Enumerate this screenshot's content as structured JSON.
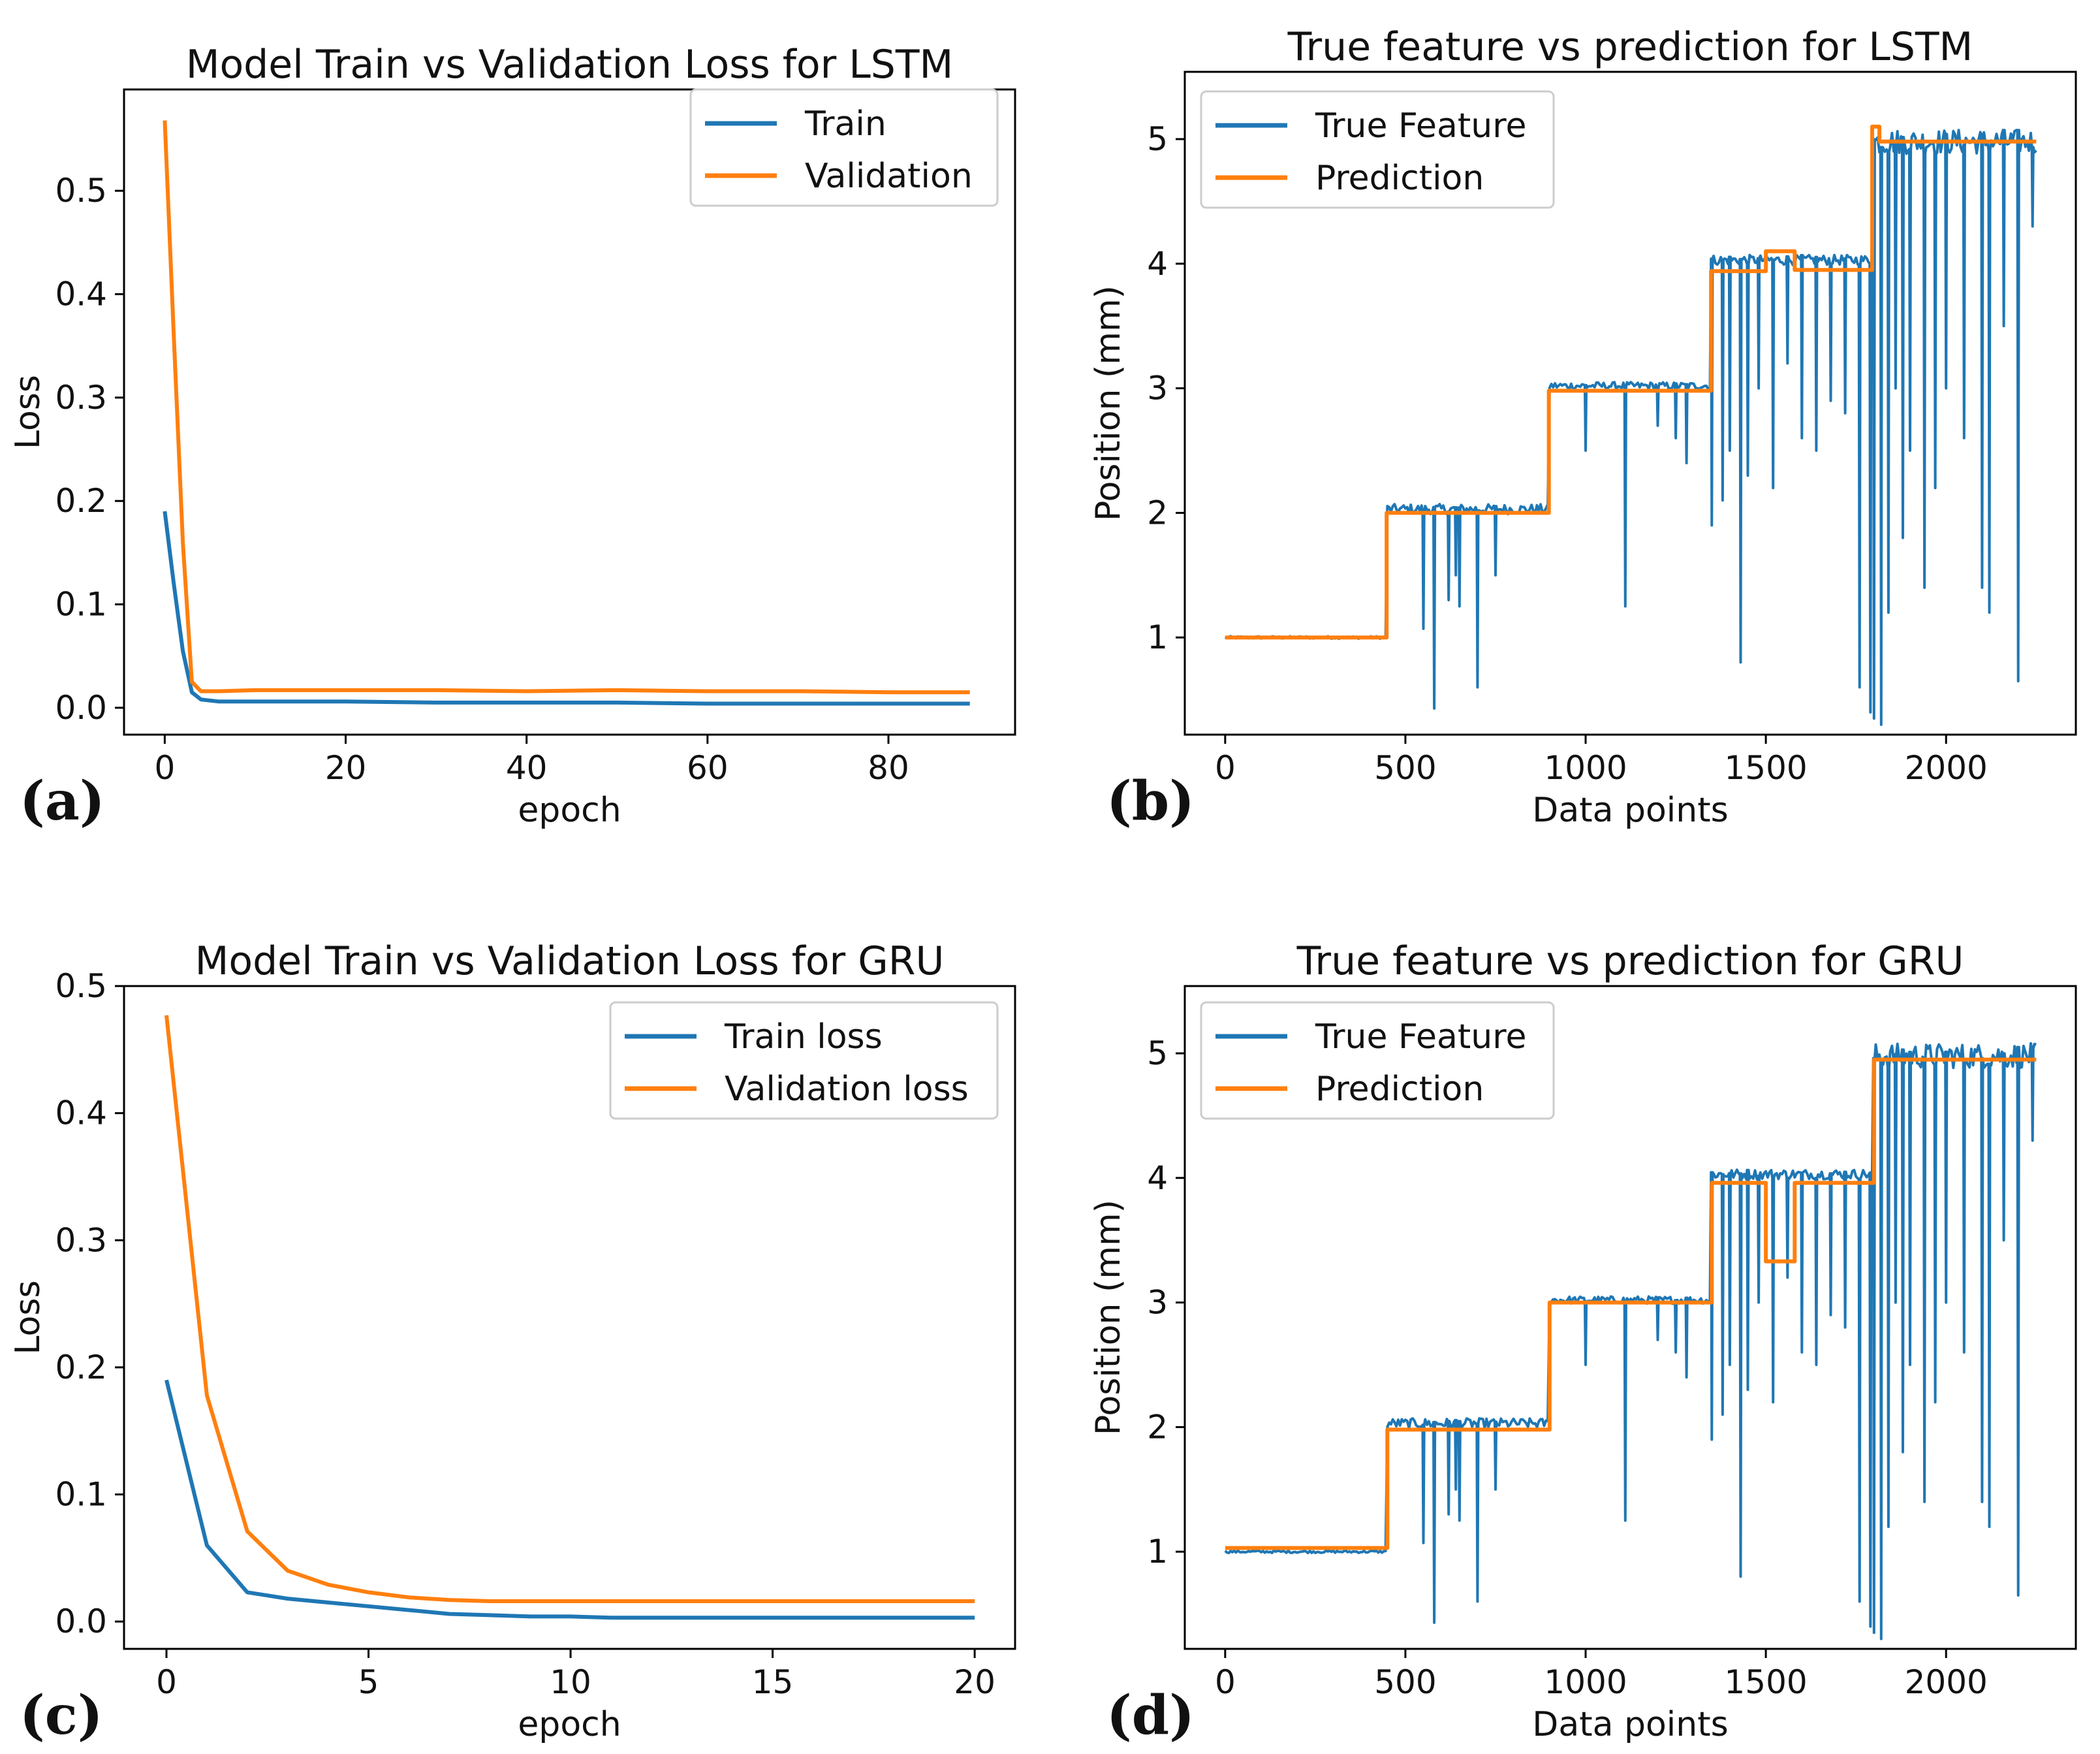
{
  "colors": {
    "train": "#1f77b4",
    "validation": "#ff7f0e",
    "axis": "#000000",
    "legend_border": "#cccccc"
  },
  "chart_data": [
    {
      "id": "a",
      "type": "line",
      "panel_label": "(a)",
      "title": "Model Train vs Validation Loss for LSTM",
      "xlabel": "epoch",
      "ylabel": "Loss",
      "xlim": [
        -4.5,
        94
      ],
      "ylim": [
        -0.026,
        0.598
      ],
      "xticks": [
        0,
        20,
        40,
        60,
        80
      ],
      "xtick_labels": [
        "0",
        "20",
        "40",
        "60",
        "80"
      ],
      "yticks": [
        0.0,
        0.1,
        0.2,
        0.3,
        0.4,
        0.5
      ],
      "ytick_labels": [
        "0.0",
        "0.1",
        "0.2",
        "0.3",
        "0.4",
        "0.5"
      ],
      "legend": {
        "position": "top-right",
        "entries": [
          "Train",
          "Validation"
        ]
      },
      "series": [
        {
          "name": "Train",
          "color_key": "train",
          "x": [
            0,
            1,
            2,
            3,
            4,
            6,
            10,
            20,
            30,
            40,
            50,
            60,
            70,
            80,
            89
          ],
          "y": [
            0.19,
            0.12,
            0.055,
            0.015,
            0.008,
            0.006,
            0.006,
            0.006,
            0.005,
            0.005,
            0.005,
            0.004,
            0.004,
            0.004,
            0.004
          ]
        },
        {
          "name": "Validation",
          "color_key": "validation",
          "x": [
            0,
            1,
            2,
            3,
            4,
            6,
            10,
            20,
            30,
            40,
            50,
            60,
            70,
            80,
            89
          ],
          "y": [
            0.568,
            0.36,
            0.16,
            0.025,
            0.016,
            0.016,
            0.017,
            0.017,
            0.017,
            0.016,
            0.017,
            0.016,
            0.016,
            0.015,
            0.015
          ]
        }
      ]
    },
    {
      "id": "b",
      "type": "line",
      "panel_label": "(b)",
      "title": "True feature vs prediction for LSTM",
      "xlabel": "Data points",
      "ylabel": "Position (mm)",
      "xlim": [
        -112,
        2360
      ],
      "ylim": [
        0.22,
        5.54
      ],
      "xticks": [
        0,
        500,
        1000,
        1500,
        2000
      ],
      "xtick_labels": [
        "0",
        "500",
        "1000",
        "1500",
        "2000"
      ],
      "yticks": [
        1,
        2,
        3,
        4,
        5
      ],
      "ytick_labels": [
        "1",
        "2",
        "3",
        "4",
        "5"
      ],
      "legend": {
        "position": "top-left",
        "entries": [
          "True Feature",
          "Prediction"
        ]
      },
      "series": [
        {
          "name": "True Feature",
          "color_key": "train",
          "kind": "noisy-steps",
          "x_max": 2250,
          "steps": [
            [
              0,
              1.0
            ],
            [
              450,
              2.03
            ],
            [
              900,
              3.02
            ],
            [
              1350,
              4.03
            ],
            [
              1800,
              4.98
            ]
          ],
          "noise": [
            0.01,
            0.04,
            0.03,
            0.04,
            0.1
          ],
          "dips": [
            [
              580,
              0.43
            ],
            [
              550,
              1.07
            ],
            [
              620,
              1.3
            ],
            [
              640,
              1.5
            ],
            [
              650,
              1.25
            ],
            [
              700,
              0.6
            ],
            [
              750,
              1.5
            ],
            [
              1110,
              1.25
            ],
            [
              1000,
              2.5
            ],
            [
              1200,
              2.7
            ],
            [
              1250,
              2.6
            ],
            [
              1280,
              2.4
            ],
            [
              1350,
              1.9
            ],
            [
              1380,
              2.1
            ],
            [
              1400,
              2.5
            ],
            [
              1430,
              0.8
            ],
            [
              1450,
              2.3
            ],
            [
              1480,
              3.0
            ],
            [
              1520,
              2.2
            ],
            [
              1560,
              3.2
            ],
            [
              1600,
              2.6
            ],
            [
              1640,
              2.5
            ],
            [
              1680,
              2.9
            ],
            [
              1720,
              2.8
            ],
            [
              1760,
              0.6
            ],
            [
              1790,
              0.4
            ],
            [
              1800,
              0.35
            ],
            [
              1820,
              0.3
            ],
            [
              1840,
              1.2
            ],
            [
              1860,
              3.0
            ],
            [
              1880,
              1.8
            ],
            [
              1900,
              2.5
            ],
            [
              1940,
              1.4
            ],
            [
              1970,
              2.2
            ],
            [
              2000,
              3.0
            ],
            [
              2050,
              2.6
            ],
            [
              2100,
              1.4
            ],
            [
              2120,
              1.2
            ],
            [
              2160,
              3.5
            ],
            [
              2200,
              0.65
            ],
            [
              2240,
              4.3
            ]
          ]
        },
        {
          "name": "Prediction",
          "color_key": "validation",
          "kind": "steps",
          "points": [
            [
              0,
              1.0
            ],
            [
              448,
              1.0
            ],
            [
              448,
              2.0
            ],
            [
              898,
              2.0
            ],
            [
              898,
              2.98
            ],
            [
              1348,
              2.98
            ],
            [
              1348,
              3.94
            ],
            [
              1500,
              3.94
            ],
            [
              1500,
              4.1
            ],
            [
              1580,
              4.1
            ],
            [
              1580,
              3.95
            ],
            [
              1795,
              3.95
            ],
            [
              1795,
              5.1
            ],
            [
              1815,
              5.1
            ],
            [
              1815,
              4.98
            ],
            [
              2250,
              4.98
            ]
          ]
        }
      ]
    },
    {
      "id": "c",
      "type": "line",
      "panel_label": "(c)",
      "title": "Model Train vs Validation Loss for GRU",
      "xlabel": "epoch",
      "ylabel": "Loss",
      "xlim": [
        -1.05,
        21.0
      ],
      "ylim": [
        -0.0215,
        0.5
      ],
      "xticks": [
        0,
        5,
        10,
        15,
        20
      ],
      "xtick_labels": [
        "0",
        "5",
        "10",
        "15",
        "20"
      ],
      "yticks": [
        0.0,
        0.1,
        0.2,
        0.3,
        0.4,
        0.5
      ],
      "ytick_labels": [
        "0.0",
        "0.1",
        "0.2",
        "0.3",
        "0.4",
        "0.5"
      ],
      "legend": {
        "position": "top-right",
        "entries": [
          "Train loss",
          "Validation loss"
        ]
      },
      "series": [
        {
          "name": "Train loss",
          "color_key": "train",
          "x": [
            0,
            1,
            2,
            3,
            4,
            5,
            6,
            7,
            8,
            9,
            10,
            11,
            12,
            13,
            14,
            15,
            16,
            17,
            18,
            19,
            20
          ],
          "y": [
            0.19,
            0.06,
            0.023,
            0.018,
            0.015,
            0.012,
            0.009,
            0.006,
            0.005,
            0.004,
            0.004,
            0.003,
            0.003,
            0.003,
            0.003,
            0.003,
            0.003,
            0.003,
            0.003,
            0.003,
            0.003
          ]
        },
        {
          "name": "Validation loss",
          "color_key": "validation",
          "x": [
            0,
            1,
            2,
            3,
            4,
            5,
            6,
            7,
            8,
            9,
            10,
            11,
            12,
            13,
            14,
            15,
            16,
            17,
            18,
            19,
            20
          ],
          "y": [
            0.477,
            0.178,
            0.071,
            0.04,
            0.029,
            0.023,
            0.019,
            0.017,
            0.016,
            0.016,
            0.016,
            0.016,
            0.016,
            0.016,
            0.016,
            0.016,
            0.016,
            0.016,
            0.016,
            0.016,
            0.016
          ]
        }
      ]
    },
    {
      "id": "d",
      "type": "line",
      "panel_label": "(d)",
      "title": "True feature vs prediction for GRU",
      "xlabel": "Data points",
      "ylabel": "Position (mm)",
      "xlim": [
        -112,
        2360
      ],
      "ylim": [
        0.22,
        5.54
      ],
      "xticks": [
        0,
        500,
        1000,
        1500,
        2000
      ],
      "xtick_labels": [
        "0",
        "500",
        "1000",
        "1500",
        "2000"
      ],
      "yticks": [
        1,
        2,
        3,
        4,
        5
      ],
      "ytick_labels": [
        "1",
        "2",
        "3",
        "4",
        "5"
      ],
      "legend": {
        "position": "top-left",
        "entries": [
          "True Feature",
          "Prediction"
        ]
      },
      "series": [
        {
          "name": "True Feature",
          "color_key": "train",
          "kind": "noisy-steps",
          "x_max": 2250,
          "steps": [
            [
              0,
              1.0
            ],
            [
              450,
              2.03
            ],
            [
              900,
              3.02
            ],
            [
              1350,
              4.03
            ],
            [
              1800,
              4.98
            ]
          ],
          "noise": [
            0.01,
            0.04,
            0.03,
            0.04,
            0.1
          ],
          "dips": [
            [
              580,
              0.43
            ],
            [
              550,
              1.07
            ],
            [
              620,
              1.3
            ],
            [
              640,
              1.5
            ],
            [
              650,
              1.25
            ],
            [
              700,
              0.6
            ],
            [
              750,
              1.5
            ],
            [
              1110,
              1.25
            ],
            [
              1000,
              2.5
            ],
            [
              1200,
              2.7
            ],
            [
              1250,
              2.6
            ],
            [
              1280,
              2.4
            ],
            [
              1350,
              1.9
            ],
            [
              1380,
              2.1
            ],
            [
              1400,
              2.5
            ],
            [
              1430,
              0.8
            ],
            [
              1450,
              2.3
            ],
            [
              1480,
              3.0
            ],
            [
              1520,
              2.2
            ],
            [
              1560,
              3.2
            ],
            [
              1600,
              2.6
            ],
            [
              1640,
              2.5
            ],
            [
              1680,
              2.9
            ],
            [
              1720,
              2.8
            ],
            [
              1760,
              0.6
            ],
            [
              1790,
              0.4
            ],
            [
              1800,
              0.35
            ],
            [
              1820,
              0.3
            ],
            [
              1840,
              1.2
            ],
            [
              1860,
              3.0
            ],
            [
              1880,
              1.8
            ],
            [
              1900,
              2.5
            ],
            [
              1940,
              1.4
            ],
            [
              1970,
              2.2
            ],
            [
              2000,
              3.0
            ],
            [
              2050,
              2.6
            ],
            [
              2100,
              1.4
            ],
            [
              2120,
              1.2
            ],
            [
              2160,
              3.5
            ],
            [
              2200,
              0.65
            ],
            [
              2240,
              4.3
            ]
          ]
        },
        {
          "name": "Prediction",
          "color_key": "validation",
          "kind": "steps",
          "points": [
            [
              0,
              1.03
            ],
            [
              450,
              1.03
            ],
            [
              450,
              1.98
            ],
            [
              900,
              1.98
            ],
            [
              900,
              3.0
            ],
            [
              1350,
              3.0
            ],
            [
              1350,
              3.96
            ],
            [
              1500,
              3.96
            ],
            [
              1500,
              3.33
            ],
            [
              1580,
              3.33
            ],
            [
              1580,
              3.96
            ],
            [
              1800,
              3.96
            ],
            [
              1800,
              4.95
            ],
            [
              2250,
              4.95
            ]
          ]
        }
      ]
    }
  ]
}
